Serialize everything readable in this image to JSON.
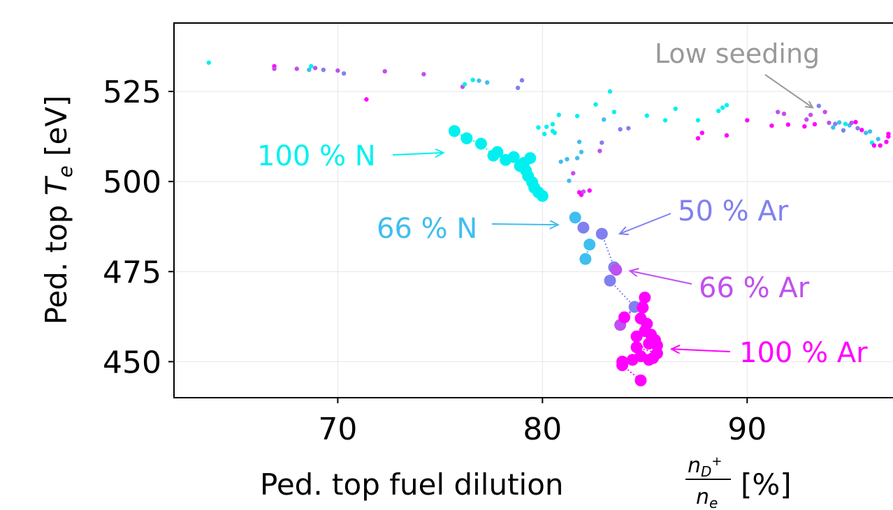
{
  "chart_data": {
    "type": "scatter",
    "title": "",
    "xlabel": "Ped. top fuel dilution",
    "xlabel_fraction": {
      "num_base": "n",
      "num_sub": "D",
      "num_sup": "+",
      "den_base": "n",
      "den_sub": "e"
    },
    "xlabel_unit": "[%]",
    "ylabel_prefix": "Ped. top",
    "ylabel_var": "T",
    "ylabel_sub": "e",
    "ylabel_unit": "[eV]",
    "xlim": [
      62,
      97.5
    ],
    "ylim": [
      440,
      544
    ],
    "xticks": [
      70,
      80,
      90
    ],
    "yticks": [
      450,
      475,
      500,
      525
    ],
    "xtick_labels": [
      "70",
      "80",
      "90"
    ],
    "ytick_labels": [
      "450",
      "475",
      "500",
      "525"
    ],
    "grid": true,
    "colors": {
      "n100": "#00f0f0",
      "n66": "#3fbef0",
      "ar50": "#8080f0",
      "ar66": "#c050f0",
      "ar100": "#ff00ff",
      "annot_low": "#999999"
    },
    "annotations": [
      {
        "text": "Low seeding",
        "color": "#999999",
        "xy": [
          93.2,
          520.5
        ]
      },
      {
        "text": "100 % N",
        "color": "#00f0f0",
        "xy": [
          75.3,
          508
        ]
      },
      {
        "text": "66 % N",
        "color": "#3fbef0",
        "xy": [
          80.9,
          488
        ]
      },
      {
        "text": "50 % Ar",
        "color": "#8080f0",
        "xy": [
          83.5,
          485.5
        ]
      },
      {
        "text": "66 % Ar",
        "color": "#c050f0",
        "xy": [
          84.0,
          475.2
        ]
      },
      {
        "text": "100 % Ar",
        "color": "#ff00ff",
        "xy": [
          86.1,
          453.5
        ]
      }
    ],
    "series": [
      {
        "key": "low_seeding",
        "marker": "small",
        "points": [
          [
            63.7,
            533,
            "n100"
          ],
          [
            66.9,
            532,
            "ar100"
          ],
          [
            66.9,
            531.3,
            "ar66"
          ],
          [
            68.0,
            531.3,
            "ar66"
          ],
          [
            68.6,
            531,
            "n66"
          ],
          [
            68.7,
            532,
            "n100"
          ],
          [
            68.9,
            531.5,
            "ar66"
          ],
          [
            69.3,
            531.0,
            "ar50"
          ],
          [
            70.0,
            530.8,
            "ar66"
          ],
          [
            70.3,
            530.0,
            "ar50"
          ],
          [
            71.4,
            522.8,
            "ar100"
          ],
          [
            72.3,
            530.6,
            "ar66"
          ],
          [
            74.2,
            529.8,
            "ar66"
          ],
          [
            76.1,
            526.3,
            "ar66"
          ],
          [
            76.2,
            527.0,
            "n100"
          ],
          [
            76.6,
            528.2,
            "n100"
          ],
          [
            76.9,
            528.0,
            "n66"
          ],
          [
            77.3,
            527.5,
            "n66"
          ],
          [
            78.8,
            526.0,
            "ar50"
          ],
          [
            79.0,
            528.1,
            "ar50"
          ],
          [
            79.8,
            515.0,
            "n100"
          ],
          [
            80.1,
            513.2,
            "n100"
          ],
          [
            80.2,
            515.2,
            "n100"
          ],
          [
            80.5,
            514.0,
            "n100"
          ],
          [
            80.5,
            515.9,
            "n100"
          ],
          [
            80.6,
            513.5,
            "n100"
          ],
          [
            80.8,
            518.5,
            "n100"
          ],
          [
            80.9,
            505.5,
            "n66"
          ],
          [
            81.2,
            506.2,
            "n66"
          ],
          [
            81.3,
            500.2,
            "n66"
          ],
          [
            81.5,
            502.3,
            "ar66"
          ],
          [
            81.7,
            518.2,
            "n100"
          ],
          [
            81.8,
            497.0,
            "ar100"
          ],
          [
            81.9,
            496.3,
            "ar100"
          ],
          [
            82.0,
            497.2,
            "ar66"
          ],
          [
            81.8,
            511.0,
            "n66"
          ],
          [
            81.9,
            508.2,
            "n66"
          ],
          [
            81.7,
            506.5,
            "n66"
          ],
          [
            82.3,
            497.5,
            "ar100"
          ],
          [
            82.6,
            521.4,
            "n100"
          ],
          [
            82.8,
            508.5,
            "ar66"
          ],
          [
            82.9,
            510.8,
            "ar50"
          ],
          [
            83.0,
            517.2,
            "n66"
          ],
          [
            83.3,
            525.0,
            "n100"
          ],
          [
            83.5,
            519.3,
            "n100"
          ],
          [
            83.8,
            514.5,
            "ar50"
          ],
          [
            84.2,
            514.8,
            "ar50"
          ],
          [
            85.1,
            518.3,
            "n100"
          ],
          [
            86.0,
            517.0,
            "n100"
          ],
          [
            86.5,
            520.2,
            "n100"
          ],
          [
            87.6,
            517.0,
            "n100"
          ],
          [
            87.6,
            512.0,
            "ar100"
          ],
          [
            87.8,
            513.5,
            "ar100"
          ],
          [
            88.6,
            519.6,
            "n100"
          ],
          [
            88.8,
            520.5,
            "n100"
          ],
          [
            89.0,
            521.2,
            "n100"
          ],
          [
            89.0,
            512.8,
            "ar100"
          ],
          [
            90.0,
            517.0,
            "ar100"
          ],
          [
            91.2,
            515.5,
            "ar100"
          ],
          [
            91.5,
            519.3,
            "ar66"
          ],
          [
            91.8,
            518.8,
            "ar66"
          ],
          [
            92.0,
            515.8,
            "ar100"
          ],
          [
            92.8,
            515.3,
            "ar100"
          ],
          [
            92.9,
            517.2,
            "ar66"
          ],
          [
            93.1,
            518.5,
            "ar66"
          ],
          [
            93.3,
            515.9,
            "ar100"
          ],
          [
            93.5,
            521.0,
            "ar50"
          ],
          [
            93.8,
            519.3,
            "ar66"
          ],
          [
            94.0,
            516.3,
            "ar66"
          ],
          [
            94.2,
            515.0,
            "n66"
          ],
          [
            94.3,
            516.0,
            "ar50"
          ],
          [
            94.5,
            516.4,
            "n66"
          ],
          [
            94.7,
            514.2,
            "ar50"
          ],
          [
            94.8,
            516.0,
            "n100"
          ],
          [
            95.0,
            515.6,
            "n66"
          ],
          [
            95.1,
            516.3,
            "ar66"
          ],
          [
            95.3,
            516.5,
            "ar100"
          ],
          [
            95.4,
            514.8,
            "ar50"
          ],
          [
            95.6,
            514.3,
            "ar100"
          ],
          [
            95.8,
            513.5,
            "n66"
          ],
          [
            96.0,
            513.9,
            "n66"
          ],
          [
            96.1,
            510.8,
            "n100"
          ],
          [
            96.2,
            510.0,
            "ar100"
          ],
          [
            96.4,
            511.8,
            "n66"
          ],
          [
            96.5,
            510.0,
            "ar100"
          ],
          [
            96.8,
            511.0,
            "ar100"
          ],
          [
            96.9,
            512.5,
            "ar100"
          ],
          [
            96.9,
            513.2,
            "ar100"
          ]
        ]
      },
      {
        "key": "seeded",
        "marker": "large",
        "points": [
          [
            75.7,
            514,
            "n100"
          ],
          [
            76.3,
            512,
            "n100"
          ],
          [
            77.0,
            510.5,
            "n100"
          ],
          [
            77.6,
            507.2,
            "n100"
          ],
          [
            77.8,
            508.2,
            "n100"
          ],
          [
            78.2,
            506.0,
            "n100"
          ],
          [
            78.6,
            506.8,
            "n100"
          ],
          [
            78.9,
            504.3,
            "n100"
          ],
          [
            79.1,
            505.2,
            "n100"
          ],
          [
            79.4,
            506.5,
            "n100"
          ],
          [
            79.2,
            503.0,
            "n100"
          ],
          [
            79.3,
            501.5,
            "n100"
          ],
          [
            79.5,
            499.8,
            "n100"
          ],
          [
            79.6,
            498.3,
            "n100"
          ],
          [
            79.8,
            497.0,
            "n100"
          ],
          [
            80.0,
            496.0,
            "n100"
          ],
          [
            81.6,
            490.0,
            "n66"
          ],
          [
            82.0,
            487.2,
            "ar50"
          ],
          [
            82.3,
            482.5,
            "n66"
          ],
          [
            82.1,
            478.5,
            "n66"
          ],
          [
            82.9,
            485.5,
            "ar50"
          ],
          [
            83.5,
            476.2,
            "ar50"
          ],
          [
            83.6,
            475.5,
            "ar66"
          ],
          [
            83.3,
            472.5,
            "ar50"
          ],
          [
            84.5,
            465.2,
            "ar50"
          ],
          [
            83.8,
            460.2,
            "ar66"
          ],
          [
            84.0,
            462.3,
            "ar100"
          ],
          [
            85.0,
            467.8,
            "ar100"
          ],
          [
            84.9,
            465.0,
            "ar100"
          ],
          [
            84.8,
            462.0,
            "ar100"
          ],
          [
            85.1,
            460.5,
            "ar100"
          ],
          [
            85.0,
            458.5,
            "ar100"
          ],
          [
            84.6,
            457.0,
            "ar100"
          ],
          [
            85.3,
            457.5,
            "ar100"
          ],
          [
            85.2,
            455.0,
            "ar100"
          ],
          [
            85.5,
            456.0,
            "ar100"
          ],
          [
            85.6,
            454.5,
            "ar100"
          ],
          [
            84.6,
            454.0,
            "ar100"
          ],
          [
            85.6,
            452.3,
            "ar100"
          ],
          [
            84.8,
            451.5,
            "ar100"
          ],
          [
            85.2,
            450.5,
            "ar100"
          ],
          [
            84.4,
            450.5,
            "ar100"
          ],
          [
            85.4,
            451.0,
            "ar100"
          ],
          [
            83.9,
            450.0,
            "ar100"
          ],
          [
            83.9,
            449.0,
            "ar100"
          ],
          [
            84.8,
            444.8,
            "ar100"
          ]
        ]
      }
    ]
  }
}
